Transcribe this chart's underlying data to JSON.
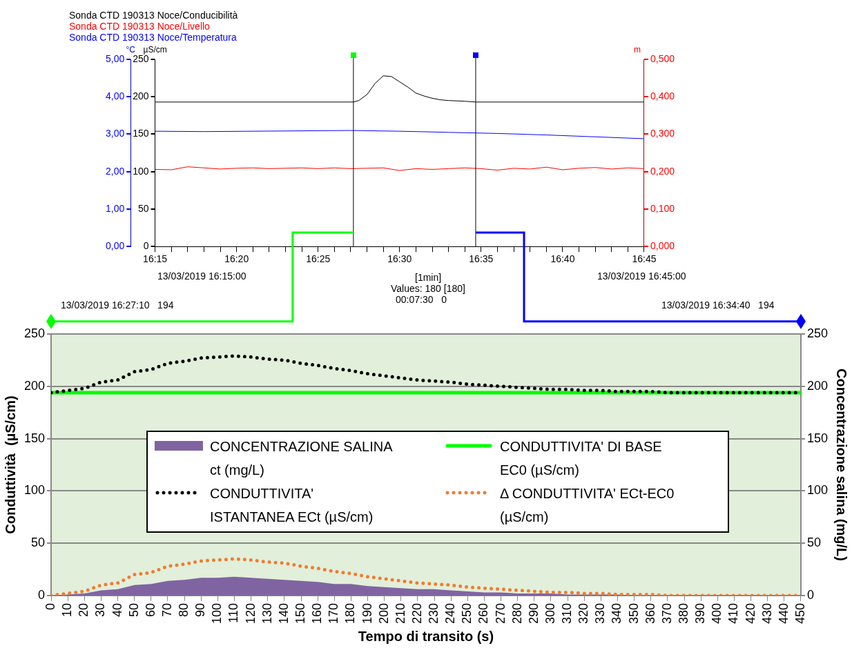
{
  "chart_data": [
    {
      "type": "line",
      "legend": "top left",
      "marker": "none",
      "xlim": [
        16.25,
        16.75
      ],
      "xticks": [
        {
          "value": 16.25,
          "label": "16:15"
        },
        {
          "value": 16.266667,
          "label": null
        },
        {
          "value": 16.283333,
          "label": null
        },
        {
          "value": 16.3,
          "label": null
        },
        {
          "value": 16.316667,
          "label": null
        },
        {
          "value": 16.333333,
          "label": "16:20"
        },
        {
          "value": 16.35,
          "label": null
        },
        {
          "value": 16.366667,
          "label": null
        },
        {
          "value": 16.383333,
          "label": null
        },
        {
          "value": 16.4,
          "label": null
        },
        {
          "value": 16.416667,
          "label": "16:25"
        },
        {
          "value": 16.433333,
          "label": null
        },
        {
          "value": 16.45,
          "label": null
        },
        {
          "value": 16.466667,
          "label": null
        },
        {
          "value": 16.483333,
          "label": null
        },
        {
          "value": 16.5,
          "label": "16:30"
        },
        {
          "value": 16.516667,
          "label": null
        },
        {
          "value": 16.533333,
          "label": null
        },
        {
          "value": 16.55,
          "label": null
        },
        {
          "value": 16.566667,
          "label": null
        },
        {
          "value": 16.583333,
          "label": "16:35"
        },
        {
          "value": 16.6,
          "label": null
        },
        {
          "value": 16.616667,
          "label": null
        },
        {
          "value": 16.633333,
          "label": null
        },
        {
          "value": 16.65,
          "label": null
        },
        {
          "value": 16.666667,
          "label": "16:40"
        },
        {
          "value": 16.683333,
          "label": null
        },
        {
          "value": 16.7,
          "label": null
        },
        {
          "value": 16.716667,
          "label": null
        },
        {
          "value": 16.733333,
          "label": null
        },
        {
          "value": 16.75,
          "label": "16:45"
        }
      ],
      "ylabel": "µS/cm",
      "ylim": [
        0,
        250
      ],
      "yticks": [
        0,
        50,
        100,
        150,
        200,
        250
      ],
      "y2label": "m",
      "y2lim": [
        0,
        0.5
      ],
      "y2ticks": [
        {
          "value": 0,
          "label": "0,000"
        },
        {
          "value": 0.1,
          "label": "0,100"
        },
        {
          "value": 0.2,
          "label": "0,200"
        },
        {
          "value": 0.3,
          "label": "0,300"
        },
        {
          "value": 0.4,
          "label": "0,400"
        },
        {
          "value": 0.5,
          "label": "0,500"
        }
      ],
      "y3label": "°C",
      "y3lim": [
        0,
        5
      ],
      "y3ticks": [
        {
          "value": 0,
          "label": "0,00"
        },
        {
          "value": 1,
          "label": "1,00"
        },
        {
          "value": 2,
          "label": "2,00"
        },
        {
          "value": 3,
          "label": "3,00"
        },
        {
          "value": 4,
          "label": "4,00"
        },
        {
          "value": 5,
          "label": "5,00"
        }
      ],
      "series": [
        {
          "name": "Sonda CTD 190313 Noce/Conducibilità",
          "color": "#000000",
          "x": [
            16.25,
            16.452778,
            16.458333,
            16.466667,
            16.475,
            16.483333,
            16.491667,
            16.5,
            16.508333,
            16.516667,
            16.525,
            16.533333,
            16.541667,
            16.55,
            16.566667,
            16.577778,
            16.75
          ],
          "values": [
            193,
            193,
            195,
            203,
            218,
            228,
            227,
            220,
            213,
            205,
            201,
            198,
            196,
            195,
            194,
            193,
            193
          ]
        },
        {
          "name": "Sonda CTD 190313 Noce/Livello",
          "color": "#ff0000",
          "axis": "y2",
          "x": [
            16.25,
            16.266667,
            16.283333,
            16.3,
            16.316667,
            16.333333,
            16.35,
            16.366667,
            16.383333,
            16.4,
            16.416667,
            16.433333,
            16.45,
            16.466667,
            16.483333,
            16.5,
            16.516667,
            16.533333,
            16.55,
            16.566667,
            16.583333,
            16.6,
            16.616667,
            16.633333,
            16.65,
            16.666667,
            16.683333,
            16.7,
            16.716667,
            16.733333,
            16.75
          ],
          "values": [
            0.206,
            0.205,
            0.213,
            0.21,
            0.207,
            0.209,
            0.21,
            0.208,
            0.209,
            0.21,
            0.208,
            0.21,
            0.208,
            0.209,
            0.21,
            0.203,
            0.208,
            0.206,
            0.208,
            0.21,
            0.208,
            0.204,
            0.209,
            0.207,
            0.212,
            0.205,
            0.209,
            0.211,
            0.207,
            0.21,
            0.208
          ]
        },
        {
          "name": "Sonda CTD 190313 Noce/Temperatura",
          "color": "#0000ff",
          "axis": "y3",
          "x": [
            16.25,
            16.3,
            16.4,
            16.45,
            16.5,
            16.55,
            16.6,
            16.65,
            16.7,
            16.75
          ],
          "values": [
            3.08,
            3.07,
            3.09,
            3.1,
            3.08,
            3.05,
            3.02,
            2.98,
            2.93,
            2.88
          ]
        }
      ],
      "ref_lines": [
        {
          "axis": "x",
          "value": 16.452778
        },
        {
          "axis": "x",
          "value": 16.577778
        }
      ],
      "annotations": [
        "13/03/2019 16:15:00",
        "13/03/2019 16:45:00",
        "[1min]",
        "Values: 180 [180]",
        "00:07:30   0",
        "13/03/2019 16:27:10   194",
        "13/03/2019 16:34:40   194"
      ]
    },
    {
      "type": "line",
      "legend": "center",
      "marker": "none",
      "grid": "y",
      "x": [
        0,
        10,
        20,
        30,
        40,
        50,
        60,
        70,
        80,
        90,
        100,
        110,
        120,
        130,
        140,
        150,
        160,
        170,
        180,
        190,
        200,
        210,
        220,
        230,
        240,
        250,
        260,
        270,
        280,
        290,
        300,
        310,
        320,
        330,
        340,
        350,
        360,
        370,
        380,
        390,
        400,
        410,
        420,
        430,
        440,
        450
      ],
      "xlim": [
        0,
        450
      ],
      "xticks": [
        0,
        10,
        20,
        30,
        40,
        50,
        60,
        70,
        80,
        90,
        100,
        110,
        120,
        130,
        140,
        150,
        160,
        170,
        180,
        190,
        200,
        210,
        220,
        230,
        240,
        250,
        260,
        270,
        280,
        290,
        300,
        310,
        320,
        330,
        340,
        350,
        360,
        370,
        380,
        390,
        400,
        410,
        420,
        430,
        440,
        450
      ],
      "xlabel": "Tempo di transito (s)",
      "ylabel": "Conduttività  (µS/cm)",
      "y2label": "Concentrazione salina (mg/L)",
      "ylim": [
        0,
        250
      ],
      "yticks": [
        0,
        50,
        100,
        150,
        200,
        250
      ],
      "y2lim": [
        0,
        250
      ],
      "y2ticks": [
        0,
        50,
        100,
        150,
        200,
        250
      ],
      "series": [
        {
          "name": "CONCENTRAZIONE SALINA ct (mg/L)",
          "type": "area",
          "axis": "y2",
          "color": "#8064a2",
          "values": [
            0,
            1,
            2,
            5,
            6,
            10,
            11,
            14,
            15,
            17,
            17,
            18,
            17,
            16,
            15,
            14,
            13,
            11,
            11,
            9,
            8,
            7,
            6,
            6,
            5,
            4,
            3,
            3,
            2,
            2,
            2,
            1,
            1,
            1,
            1,
            0,
            0,
            0,
            0,
            0,
            0,
            0,
            0,
            0,
            0,
            0
          ]
        },
        {
          "name": "CONDUTTIVITA' DI BASE EC0 (µS/cm)",
          "type": "line",
          "line_style": "solid",
          "color": "#00ff00",
          "values": [
            194,
            194,
            194,
            194,
            194,
            194,
            194,
            194,
            194,
            194,
            194,
            194,
            194,
            194,
            194,
            194,
            194,
            194,
            194,
            194,
            194,
            194,
            194,
            194,
            194,
            194,
            194,
            194,
            194,
            194,
            194,
            194,
            194,
            194,
            194,
            194,
            194,
            194,
            194,
            194,
            194,
            194,
            194,
            194,
            194,
            194
          ]
        },
        {
          "name": "CONDUTTIVITA' ISTANTANEA ECt (µS/cm)",
          "type": "line",
          "line_style": "dotted",
          "color": "#000000",
          "values": [
            194,
            196,
            198,
            204,
            206,
            214,
            216,
            222,
            224,
            227,
            228,
            229,
            228,
            226,
            225,
            222,
            220,
            217,
            215,
            212,
            210,
            208,
            206,
            205,
            204,
            202,
            201,
            200,
            199,
            198,
            197,
            197,
            196,
            196,
            195,
            195,
            195,
            194,
            194,
            194,
            194,
            194,
            194,
            194,
            194,
            194
          ]
        },
        {
          "name": "Δ CONDUTTIVITA' ECt-EC0 (µS/cm)",
          "type": "line",
          "line_style": "dotted",
          "color": "#ed7d31",
          "values": [
            0,
            2,
            4,
            10,
            12,
            20,
            22,
            28,
            30,
            33,
            34,
            35,
            34,
            32,
            31,
            28,
            26,
            23,
            21,
            18,
            16,
            14,
            12,
            11,
            10,
            8,
            7,
            6,
            5,
            4,
            3,
            3,
            2,
            2,
            1,
            1,
            1,
            0,
            0,
            0,
            0,
            0,
            0,
            0,
            0,
            0
          ]
        }
      ]
    }
  ]
}
